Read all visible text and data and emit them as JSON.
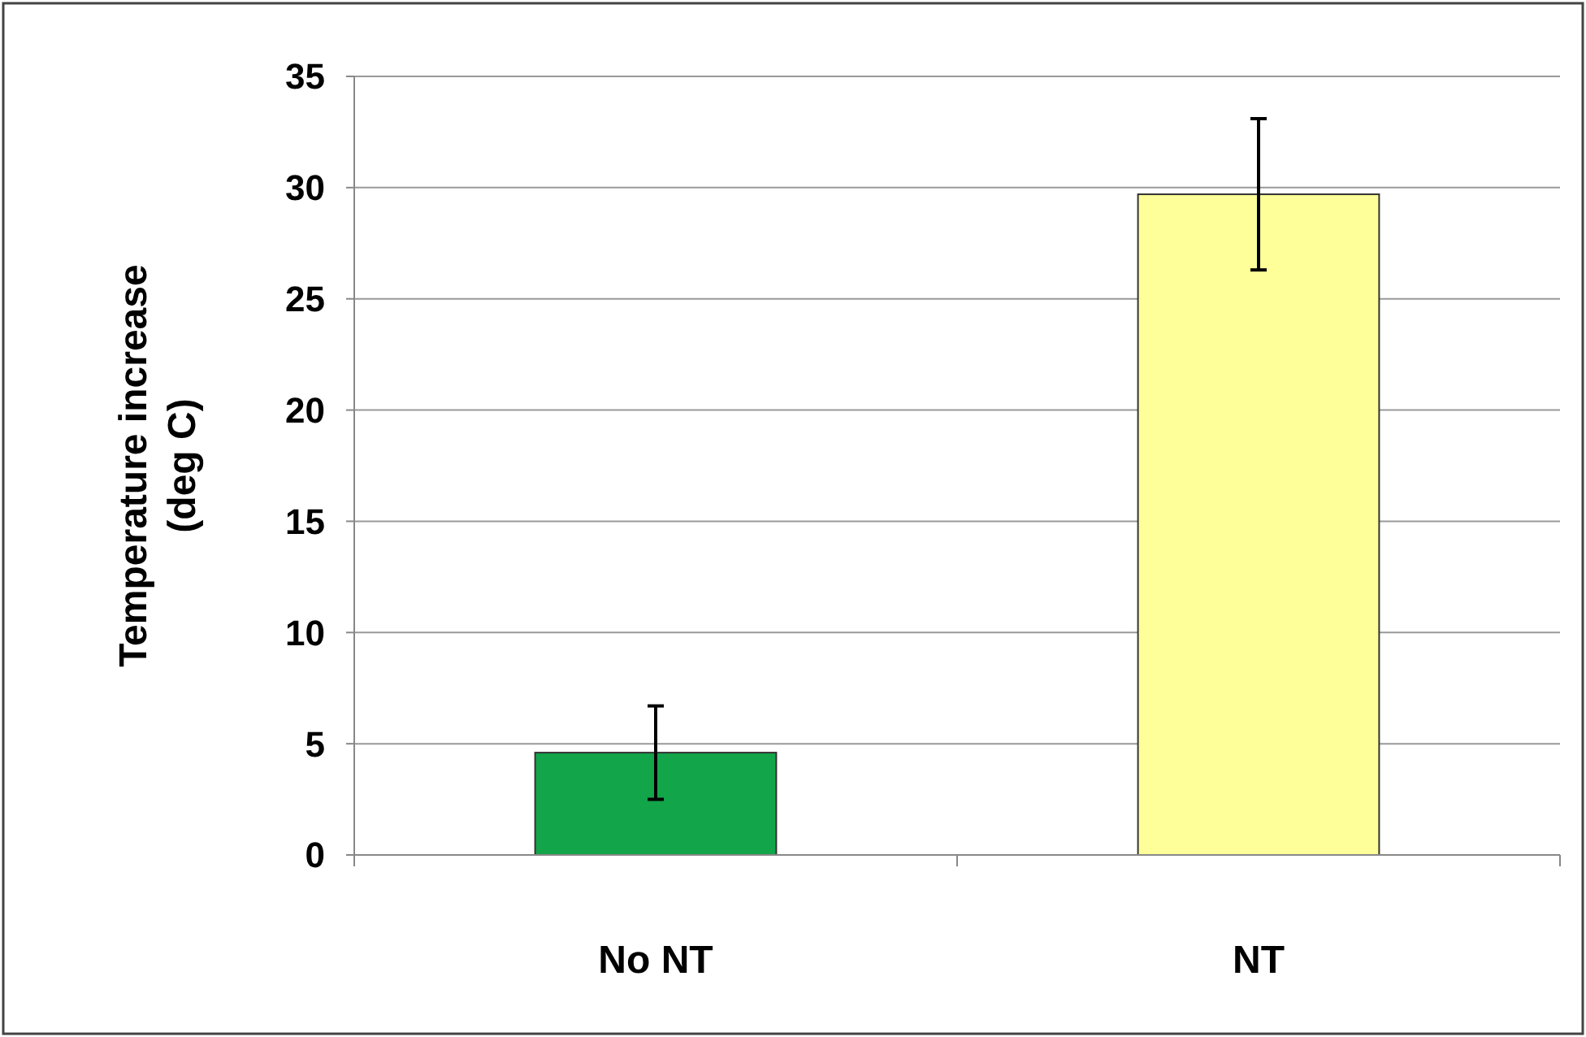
{
  "chart_data": {
    "type": "bar",
    "ylabel": "Temperature increase (deg C)",
    "categories": [
      "No NT",
      "NT"
    ],
    "values": [
      4.6,
      29.7
    ],
    "errors": [
      2.1,
      3.4
    ],
    "colors": [
      "#12a54a",
      "#ffff99"
    ],
    "ylim": [
      0,
      35
    ],
    "yticks": [
      0,
      5,
      10,
      15,
      20,
      25,
      30,
      35
    ],
    "grid": "y"
  }
}
